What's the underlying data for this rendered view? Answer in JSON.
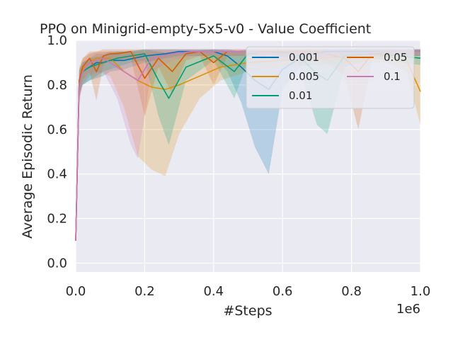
{
  "chart_data": {
    "type": "line",
    "title": "PPO on Minigrid-empty-5x5-v0 - Value Coefficient",
    "xlabel": "#Steps",
    "ylabel": "Average Episodic Return",
    "x_offset_label": "1e6",
    "xlim": [
      0,
      1.0
    ],
    "ylim": [
      -0.04,
      1.0
    ],
    "xticks": [
      0.0,
      0.2,
      0.4,
      0.6,
      0.8,
      1.0
    ],
    "xtick_labels": [
      "0.0",
      "0.2",
      "0.4",
      "0.6",
      "0.8",
      "1.0"
    ],
    "yticks": [
      0.0,
      0.2,
      0.4,
      0.6,
      0.8,
      1.0
    ],
    "ytick_labels": [
      "0.0",
      "0.2",
      "0.4",
      "0.6",
      "0.8",
      "1.0"
    ],
    "grid": true,
    "legend_position": "top-right",
    "series": [
      {
        "name": "0.001",
        "color": "#0173b2",
        "x": [
          0.0,
          0.01,
          0.02,
          0.04,
          0.06,
          0.08,
          0.1,
          0.14,
          0.2,
          0.26,
          0.3,
          0.36,
          0.4,
          0.44,
          0.48,
          0.52,
          0.56,
          0.6,
          0.66,
          0.72,
          0.8,
          0.88,
          0.95,
          1.0
        ],
        "y": [
          0.1,
          0.8,
          0.86,
          0.88,
          0.9,
          0.9,
          0.91,
          0.91,
          0.93,
          0.94,
          0.95,
          0.95,
          0.95,
          0.93,
          0.88,
          0.82,
          0.78,
          0.87,
          0.93,
          0.95,
          0.95,
          0.95,
          0.95,
          0.95
        ],
        "lower": [
          0.1,
          0.74,
          0.8,
          0.82,
          0.83,
          0.84,
          0.86,
          0.87,
          0.9,
          0.92,
          0.93,
          0.93,
          0.93,
          0.86,
          0.72,
          0.52,
          0.4,
          0.78,
          0.9,
          0.93,
          0.93,
          0.93,
          0.93,
          0.93
        ],
        "upper": [
          0.1,
          0.86,
          0.9,
          0.92,
          0.94,
          0.94,
          0.95,
          0.95,
          0.96,
          0.96,
          0.96,
          0.96,
          0.96,
          0.96,
          0.95,
          0.95,
          0.95,
          0.95,
          0.96,
          0.96,
          0.96,
          0.96,
          0.96,
          0.96
        ]
      },
      {
        "name": "0.005",
        "color": "#de8f05",
        "x": [
          0.0,
          0.01,
          0.02,
          0.04,
          0.06,
          0.1,
          0.14,
          0.18,
          0.22,
          0.26,
          0.3,
          0.36,
          0.42,
          0.5,
          0.6,
          0.7,
          0.8,
          0.9,
          0.96,
          1.0
        ],
        "y": [
          0.1,
          0.82,
          0.87,
          0.9,
          0.92,
          0.92,
          0.86,
          0.82,
          0.79,
          0.78,
          0.8,
          0.84,
          0.88,
          0.9,
          0.91,
          0.92,
          0.93,
          0.93,
          0.91,
          0.77
        ],
        "lower": [
          0.1,
          0.74,
          0.8,
          0.84,
          0.86,
          0.84,
          0.7,
          0.48,
          0.42,
          0.39,
          0.58,
          0.74,
          0.82,
          0.86,
          0.88,
          0.89,
          0.9,
          0.9,
          0.86,
          0.62
        ],
        "upper": [
          0.1,
          0.88,
          0.92,
          0.94,
          0.95,
          0.95,
          0.95,
          0.95,
          0.95,
          0.95,
          0.95,
          0.95,
          0.95,
          0.95,
          0.95,
          0.95,
          0.95,
          0.95,
          0.95,
          0.93
        ]
      },
      {
        "name": "0.01",
        "color": "#029e73",
        "x": [
          0.0,
          0.01,
          0.02,
          0.04,
          0.08,
          0.12,
          0.16,
          0.2,
          0.24,
          0.27,
          0.32,
          0.4,
          0.46,
          0.5,
          0.56,
          0.64,
          0.7,
          0.73,
          0.78,
          0.86,
          0.94,
          1.0
        ],
        "y": [
          0.1,
          0.82,
          0.86,
          0.88,
          0.9,
          0.92,
          0.93,
          0.94,
          0.82,
          0.74,
          0.88,
          0.93,
          0.86,
          0.94,
          0.95,
          0.94,
          0.85,
          0.82,
          0.93,
          0.94,
          0.93,
          0.92
        ],
        "lower": [
          0.1,
          0.76,
          0.8,
          0.82,
          0.86,
          0.88,
          0.9,
          0.91,
          0.66,
          0.53,
          0.82,
          0.91,
          0.74,
          0.91,
          0.93,
          0.92,
          0.62,
          0.58,
          0.88,
          0.92,
          0.9,
          0.89
        ],
        "upper": [
          0.1,
          0.87,
          0.9,
          0.92,
          0.93,
          0.95,
          0.95,
          0.96,
          0.95,
          0.94,
          0.95,
          0.96,
          0.95,
          0.96,
          0.96,
          0.96,
          0.95,
          0.95,
          0.96,
          0.96,
          0.96,
          0.96
        ]
      },
      {
        "name": "0.05",
        "color": "#d55e00",
        "x": [
          0.0,
          0.01,
          0.02,
          0.04,
          0.06,
          0.08,
          0.1,
          0.12,
          0.16,
          0.2,
          0.24,
          0.28,
          0.32,
          0.36,
          0.4,
          0.44,
          0.5,
          0.56,
          0.62,
          0.7,
          0.78,
          0.82,
          0.86,
          0.92,
          1.0
        ],
        "y": [
          0.1,
          0.82,
          0.88,
          0.92,
          0.86,
          0.93,
          0.94,
          0.94,
          0.95,
          0.83,
          0.92,
          0.86,
          0.94,
          0.95,
          0.9,
          0.95,
          0.95,
          0.95,
          0.95,
          0.95,
          0.92,
          0.86,
          0.94,
          0.95,
          0.95
        ],
        "lower": [
          0.1,
          0.74,
          0.82,
          0.86,
          0.73,
          0.89,
          0.91,
          0.91,
          0.92,
          0.66,
          0.88,
          0.76,
          0.91,
          0.93,
          0.8,
          0.93,
          0.93,
          0.93,
          0.93,
          0.93,
          0.84,
          0.6,
          0.91,
          0.93,
          0.93
        ],
        "upper": [
          0.1,
          0.87,
          0.92,
          0.95,
          0.95,
          0.96,
          0.96,
          0.96,
          0.96,
          0.96,
          0.96,
          0.96,
          0.96,
          0.96,
          0.96,
          0.96,
          0.96,
          0.96,
          0.96,
          0.96,
          0.96,
          0.96,
          0.96,
          0.96,
          0.96
        ]
      },
      {
        "name": "0.1",
        "color": "#cc78bc",
        "x": [
          0.0,
          0.01,
          0.02,
          0.04,
          0.08,
          0.12,
          0.16,
          0.18,
          0.22,
          0.28,
          0.34,
          0.4,
          0.5,
          0.6,
          0.7,
          0.8,
          0.9,
          1.0
        ],
        "y": [
          0.1,
          0.8,
          0.86,
          0.9,
          0.92,
          0.88,
          0.84,
          0.82,
          0.92,
          0.94,
          0.95,
          0.95,
          0.95,
          0.94,
          0.94,
          0.94,
          0.95,
          0.95
        ],
        "lower": [
          0.1,
          0.72,
          0.8,
          0.84,
          0.86,
          0.74,
          0.53,
          0.47,
          0.86,
          0.91,
          0.93,
          0.93,
          0.93,
          0.91,
          0.91,
          0.91,
          0.93,
          0.93
        ],
        "upper": [
          0.1,
          0.86,
          0.91,
          0.94,
          0.95,
          0.95,
          0.95,
          0.95,
          0.96,
          0.96,
          0.96,
          0.96,
          0.96,
          0.96,
          0.96,
          0.96,
          0.96,
          0.96
        ]
      }
    ]
  }
}
